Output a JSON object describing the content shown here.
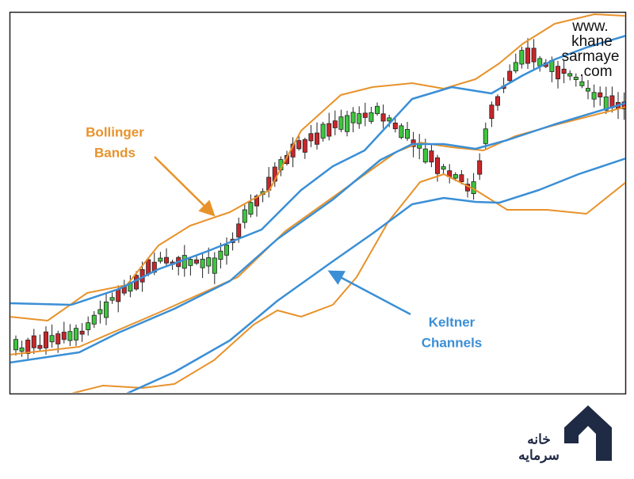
{
  "annotations": {
    "bollinger": [
      "Bollinger",
      "Bands"
    ],
    "keltner": [
      "Keltner",
      "Channels"
    ]
  },
  "watermark": [
    "www.",
    "khane",
    "sarmaye",
    ".com"
  ],
  "logo": {
    "line1": "خانه",
    "line2": "سرمایه"
  }
}
